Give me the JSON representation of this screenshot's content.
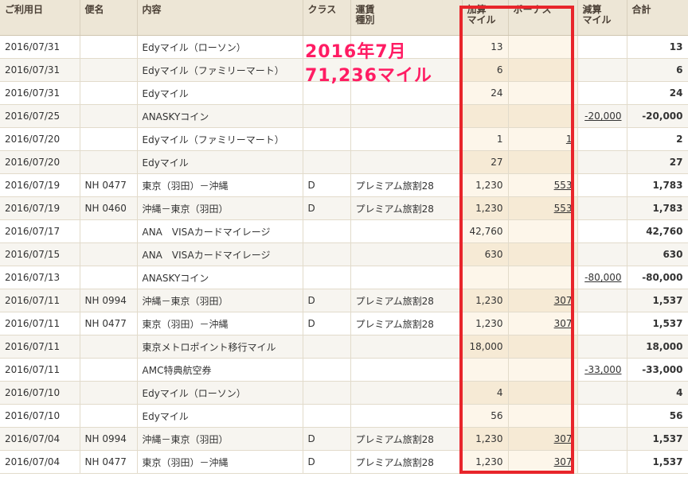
{
  "headers": {
    "date": "ご利用日",
    "flight": "便名",
    "content": "内容",
    "class": "クラス",
    "fare_line1": "運賃",
    "fare_line2": "種別",
    "add_line1": "加算",
    "add_line2": "マイル",
    "bonus": "ボーナス",
    "sub_line1": "減算",
    "sub_line2": "マイル",
    "total": "合計"
  },
  "annotation": {
    "line1": "2016年7月",
    "line2": "71,236マイル"
  },
  "rows": [
    {
      "date": "2016/07/31",
      "flight": "",
      "content": "Edyマイル（ローソン）",
      "class": "",
      "fare": "",
      "add": "13",
      "bonus": "",
      "sub": "",
      "total": "13"
    },
    {
      "date": "2016/07/31",
      "flight": "",
      "content": "Edyマイル（ファミリーマート）",
      "class": "",
      "fare": "",
      "add": "6",
      "bonus": "",
      "sub": "",
      "total": "6"
    },
    {
      "date": "2016/07/31",
      "flight": "",
      "content": "Edyマイル",
      "class": "",
      "fare": "",
      "add": "24",
      "bonus": "",
      "sub": "",
      "total": "24"
    },
    {
      "date": "2016/07/25",
      "flight": "",
      "content": "ANASKYコイン",
      "class": "",
      "fare": "",
      "add": "",
      "bonus": "",
      "sub": "-20,000",
      "total": "-20,000"
    },
    {
      "date": "2016/07/20",
      "flight": "",
      "content": "Edyマイル（ファミリーマート）",
      "class": "",
      "fare": "",
      "add": "1",
      "bonus": "1",
      "sub": "",
      "total": "2"
    },
    {
      "date": "2016/07/20",
      "flight": "",
      "content": "Edyマイル",
      "class": "",
      "fare": "",
      "add": "27",
      "bonus": "",
      "sub": "",
      "total": "27"
    },
    {
      "date": "2016/07/19",
      "flight": "NH 0477",
      "content": "東京（羽田）－沖縄",
      "class": "D",
      "fare": "プレミアム旅割28",
      "add": "1,230",
      "bonus": "553",
      "sub": "",
      "total": "1,783"
    },
    {
      "date": "2016/07/19",
      "flight": "NH 0460",
      "content": "沖縄－東京（羽田）",
      "class": "D",
      "fare": "プレミアム旅割28",
      "add": "1,230",
      "bonus": "553",
      "sub": "",
      "total": "1,783"
    },
    {
      "date": "2016/07/17",
      "flight": "",
      "content": "ANA　VISAカードマイレージ",
      "class": "",
      "fare": "",
      "add": "42,760",
      "bonus": "",
      "sub": "",
      "total": "42,760"
    },
    {
      "date": "2016/07/15",
      "flight": "",
      "content": "ANA　VISAカードマイレージ",
      "class": "",
      "fare": "",
      "add": "630",
      "bonus": "",
      "sub": "",
      "total": "630"
    },
    {
      "date": "2016/07/13",
      "flight": "",
      "content": "ANASKYコイン",
      "class": "",
      "fare": "",
      "add": "",
      "bonus": "",
      "sub": "-80,000",
      "total": "-80,000"
    },
    {
      "date": "2016/07/11",
      "flight": "NH 0994",
      "content": "沖縄－東京（羽田）",
      "class": "D",
      "fare": "プレミアム旅割28",
      "add": "1,230",
      "bonus": "307",
      "sub": "",
      "total": "1,537"
    },
    {
      "date": "2016/07/11",
      "flight": "NH 0477",
      "content": "東京（羽田）－沖縄",
      "class": "D",
      "fare": "プレミアム旅割28",
      "add": "1,230",
      "bonus": "307",
      "sub": "",
      "total": "1,537"
    },
    {
      "date": "2016/07/11",
      "flight": "",
      "content": "東京メトロポイント移行マイル",
      "class": "",
      "fare": "",
      "add": "18,000",
      "bonus": "",
      "sub": "",
      "total": "18,000"
    },
    {
      "date": "2016/07/11",
      "flight": "",
      "content": "AMC特典航空券",
      "class": "",
      "fare": "",
      "add": "",
      "bonus": "",
      "sub": "-33,000",
      "total": "-33,000"
    },
    {
      "date": "2016/07/10",
      "flight": "",
      "content": "Edyマイル（ローソン）",
      "class": "",
      "fare": "",
      "add": "4",
      "bonus": "",
      "sub": "",
      "total": "4"
    },
    {
      "date": "2016/07/10",
      "flight": "",
      "content": "Edyマイル",
      "class": "",
      "fare": "",
      "add": "56",
      "bonus": "",
      "sub": "",
      "total": "56"
    },
    {
      "date": "2016/07/04",
      "flight": "NH 0994",
      "content": "沖縄－東京（羽田）",
      "class": "D",
      "fare": "プレミアム旅割28",
      "add": "1,230",
      "bonus": "307",
      "sub": "",
      "total": "1,537"
    },
    {
      "date": "2016/07/04",
      "flight": "NH 0477",
      "content": "東京（羽田）－沖縄",
      "class": "D",
      "fare": "プレミアム旅割28",
      "add": "1,230",
      "bonus": "307",
      "sub": "",
      "total": "1,537"
    }
  ],
  "colors": {
    "header_bg": "#ede6d6",
    "highlight_box": "#e8252b",
    "annotation_text": "#ff1c63"
  }
}
